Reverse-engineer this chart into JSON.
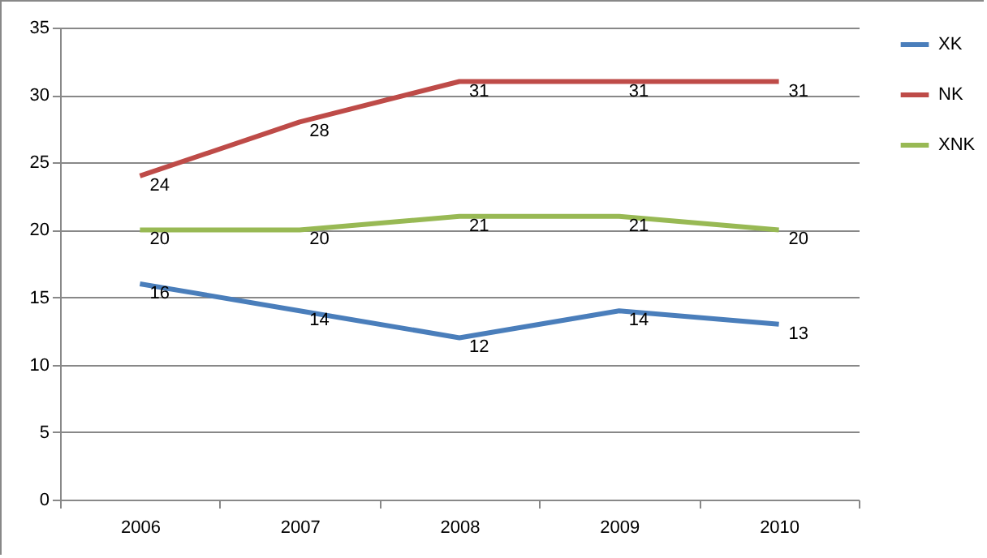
{
  "chart_data": {
    "type": "line",
    "categories": [
      "2006",
      "2007",
      "2008",
      "2009",
      "2010"
    ],
    "series": [
      {
        "name": "XK",
        "color": "#4a7ebb",
        "values": [
          16,
          14,
          12,
          14,
          13
        ]
      },
      {
        "name": "NK",
        "color": "#be4b48",
        "values": [
          24,
          28,
          31,
          31,
          31
        ]
      },
      {
        "name": "XNK",
        "color": "#98b954",
        "values": [
          20,
          20,
          21,
          21,
          20
        ]
      }
    ],
    "ylim": [
      0,
      35
    ],
    "yticks": [
      0,
      5,
      10,
      15,
      20,
      25,
      30,
      35
    ],
    "grid": "y",
    "legend": "right",
    "data_labels": true,
    "marker": "none",
    "line_style": "solid"
  }
}
